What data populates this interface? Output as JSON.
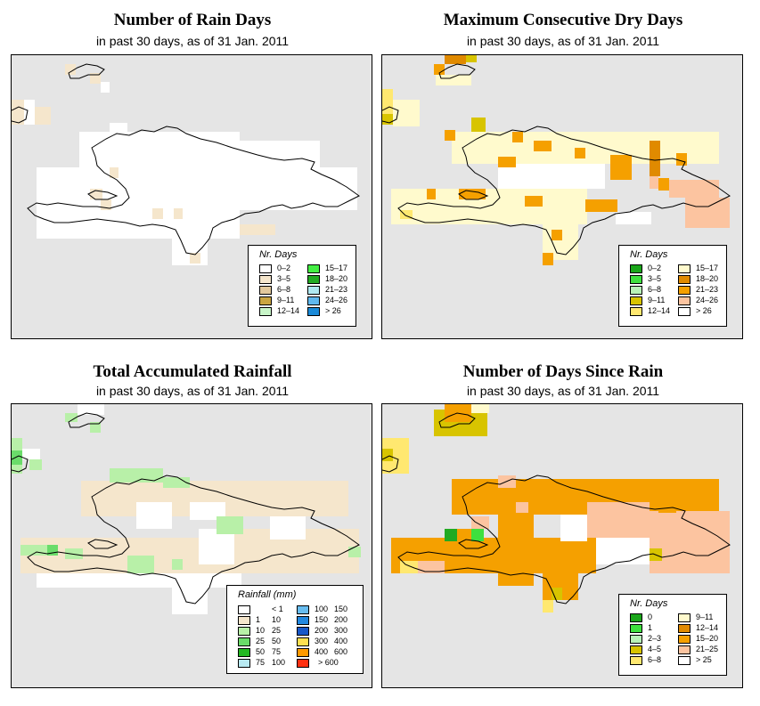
{
  "panels": [
    {
      "title": "Number of Rain Days",
      "subtitle": "in past 30 days, as of  31 Jan. 2011",
      "legend": {
        "title": "Nr. Days",
        "col1": [
          {
            "label": "0–2",
            "color": "#ffffff"
          },
          {
            "label": "3–5",
            "color": "#f5e6cc"
          },
          {
            "label": "6–8",
            "color": "#e2c89c"
          },
          {
            "label": "9–11",
            "color": "#caa541"
          },
          {
            "label": "12–14",
            "color": "#c8f5c8"
          }
        ],
        "col2": [
          {
            "label": "15–17",
            "color": "#44ee44"
          },
          {
            "label": "18–20",
            "color": "#22aa22"
          },
          {
            "label": "21–23",
            "color": "#b0e8f0"
          },
          {
            "label": "24–26",
            "color": "#60b8ee"
          },
          {
            "label": "> 26",
            "color": "#1a8ad8"
          }
        ]
      }
    },
    {
      "title": "Maximum Consecutive Dry Days",
      "subtitle": "in past 30 days, as of  31 Jan. 2011",
      "legend": {
        "title": "Nr. Days",
        "col1": [
          {
            "label": "0–2",
            "color": "#1aa61a"
          },
          {
            "label": "3–5",
            "color": "#3ee03e"
          },
          {
            "label": "6–8",
            "color": "#b8f2b8"
          },
          {
            "label": "9–11",
            "color": "#d8c400"
          },
          {
            "label": "12–14",
            "color": "#ffe870"
          }
        ],
        "col2": [
          {
            "label": "15–17",
            "color": "#fffacd"
          },
          {
            "label": "18–20",
            "color": "#e08a00"
          },
          {
            "label": "21–23",
            "color": "#f5a000"
          },
          {
            "label": "24–26",
            "color": "#fcc4a0"
          },
          {
            "label": "> 26",
            "color": "#ffffff"
          }
        ]
      }
    },
    {
      "title": "Total Accumulated Rainfall",
      "subtitle": "in past 30 days, as of  31 Jan. 2011",
      "legend": {
        "title": "Rainfall (mm)",
        "col1": [
          {
            "lo": "",
            "hi": "< 1",
            "color": "#ffffff"
          },
          {
            "lo": "1",
            "hi": "10",
            "color": "#f5e6cc"
          },
          {
            "lo": "10",
            "hi": "25",
            "color": "#b8f0a8"
          },
          {
            "lo": "25",
            "hi": "50",
            "color": "#6adc6a"
          },
          {
            "lo": "50",
            "hi": "75",
            "color": "#22b822"
          },
          {
            "lo": "75",
            "hi": "100",
            "color": "#b8eaf2"
          }
        ],
        "col2": [
          {
            "lo": "100",
            "hi": "150",
            "color": "#68bdf0"
          },
          {
            "lo": "150",
            "hi": "200",
            "color": "#2288e0"
          },
          {
            "lo": "200",
            "hi": "300",
            "color": "#1858c8"
          },
          {
            "lo": "300",
            "hi": "400",
            "color": "#ffe050"
          },
          {
            "lo": "400",
            "hi": "600",
            "color": "#ff9a00"
          },
          {
            "lo": "",
            "hi": "> 600",
            "color": "#ff3010"
          }
        ]
      }
    },
    {
      "title": "Number of Days Since Rain",
      "subtitle": "in past 30 days, as of  31 Jan. 2011",
      "legend": {
        "title": "Nr. Days",
        "col1": [
          {
            "label": "0",
            "color": "#1aa61a"
          },
          {
            "label": "1",
            "color": "#3ee03e"
          },
          {
            "label": "2–3",
            "color": "#b8f2b8"
          },
          {
            "label": "4–5",
            "color": "#d8c400"
          },
          {
            "label": "6–8",
            "color": "#ffe870"
          }
        ],
        "col2": [
          {
            "label": "9–11",
            "color": "#fffacd"
          },
          {
            "label": "12–14",
            "color": "#e08a00"
          },
          {
            "label": "15–20",
            "color": "#f5a000"
          },
          {
            "label": "21–25",
            "color": "#fcc4a0"
          },
          {
            "label": "> 25",
            "color": "#ffffff"
          }
        ]
      }
    }
  ]
}
